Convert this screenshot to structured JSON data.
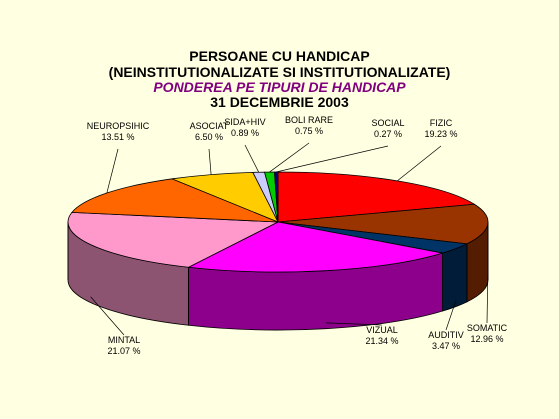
{
  "chart_data": {
    "type": "pie",
    "title": "PERSOANE CU HANDICAP",
    "title_line2": "(NEINSTITUTIONALIZATE SI INSTITUTIONALIZATE)",
    "subtitle": "PONDEREA PE TIPURI DE HANDICAP",
    "date_line": "31 DECEMBRIE 2003",
    "slices": [
      {
        "label": "FIZIC",
        "value": 19.23,
        "value_text": "19.23 %",
        "color": "#ff0000"
      },
      {
        "label": "SOMATIC",
        "value": 12.96,
        "value_text": "12.96 %",
        "color": "#993300"
      },
      {
        "label": "AUDITIV",
        "value": 3.47,
        "value_text": "3.47 %",
        "color": "#003366"
      },
      {
        "label": "VIZUAL",
        "value": 21.34,
        "value_text": "21.34 %",
        "color": "#ff00ff"
      },
      {
        "label": "MINTAL",
        "value": 21.07,
        "value_text": "21.07 %",
        "color": "#ff99cc"
      },
      {
        "label": "NEUROPSIHIC",
        "value": 13.51,
        "value_text": "13.51 %",
        "color": "#ff6600"
      },
      {
        "label": "ASOCIAT",
        "value": 6.5,
        "value_text": "6.50 %",
        "color": "#ffcc00"
      },
      {
        "label": "SIDA+HIV",
        "value": 0.89,
        "value_text": "0.89 %",
        "color": "#ccccff"
      },
      {
        "label": "BOLI RARE",
        "value": 0.75,
        "value_text": "0.75 %",
        "color": "#00cc00"
      },
      {
        "label": "SOCIAL",
        "value": 0.27,
        "value_text": "0.27 %",
        "color": "#000080"
      }
    ]
  }
}
